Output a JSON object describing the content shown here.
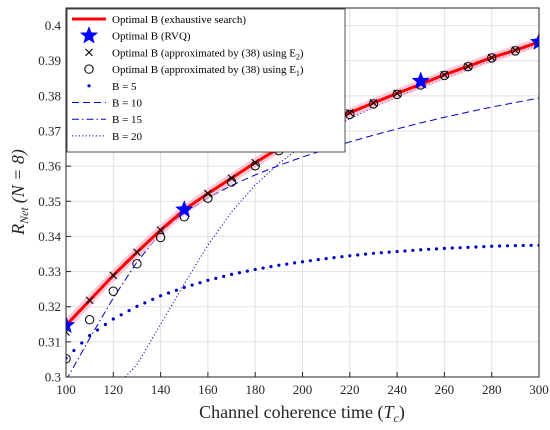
{
  "chart_data": {
    "type": "line",
    "xlabel": "Channel coherence time (",
    "xlabel_symbol": "T",
    "xlabel_sub": "c",
    "xlabel_close": ")",
    "ylabel_symbol": "R",
    "ylabel_sub": "Net",
    "ylabel_paren": "(N = 8)",
    "xlim": [
      100,
      300
    ],
    "ylim": [
      0.3,
      0.405
    ],
    "xticks": [
      100,
      120,
      140,
      160,
      180,
      200,
      220,
      240,
      260,
      280,
      300
    ],
    "yticks": [
      0.3,
      0.31,
      0.32,
      0.33,
      0.34,
      0.35,
      0.36,
      0.37,
      0.38,
      0.39,
      0.4
    ],
    "grid": true,
    "legend_position": "top-left",
    "series": [
      {
        "name": "Optimal B (exhaustive search)",
        "style": "solid-thick",
        "color": "#ff0000",
        "x": [
          100,
          110,
          120,
          130,
          140,
          150,
          160,
          170,
          180,
          190,
          200,
          210,
          220,
          230,
          240,
          250,
          260,
          270,
          280,
          290,
          300
        ],
        "y": [
          0.3147,
          0.3218,
          0.3289,
          0.3355,
          0.3418,
          0.3476,
          0.3522,
          0.3566,
          0.361,
          0.3651,
          0.369,
          0.3722,
          0.3752,
          0.378,
          0.3807,
          0.3833,
          0.386,
          0.3884,
          0.3909,
          0.393,
          0.3953
        ]
      },
      {
        "name": "Optimal B (RVQ)",
        "style": "star",
        "color": "#0000ff",
        "x": [
          100,
          150,
          200,
          250,
          300
        ],
        "y": [
          0.3147,
          0.3476,
          0.369,
          0.3842,
          0.3953
        ]
      },
      {
        "name": "Optimal B (approximated by (38) using E",
        "name_sub": "2",
        "name_close": ")",
        "style": "cross",
        "color": "#000000",
        "x": [
          100,
          110,
          120,
          130,
          140,
          150,
          160,
          170,
          180,
          190,
          200,
          210,
          220,
          230,
          240,
          250,
          260,
          270,
          280,
          290,
          300
        ],
        "y": [
          0.3128,
          0.3218,
          0.3289,
          0.3355,
          0.3418,
          0.3476,
          0.3522,
          0.3566,
          0.361,
          0.3651,
          0.369,
          0.3722,
          0.3752,
          0.378,
          0.3807,
          0.3833,
          0.386,
          0.3884,
          0.3909,
          0.393,
          0.3953
        ]
      },
      {
        "name": "Optimal B (approximated by (38) using E",
        "name_sub": "1",
        "name_close": ")",
        "style": "circle",
        "color": "#000000",
        "x": [
          100,
          110,
          120,
          130,
          140,
          150,
          160,
          170,
          180,
          190,
          200,
          210,
          220,
          230,
          240,
          250,
          260,
          270,
          280,
          290,
          300
        ],
        "y": [
          0.3052,
          0.3163,
          0.3244,
          0.3322,
          0.3397,
          0.3456,
          0.3509,
          0.3555,
          0.3601,
          0.3644,
          0.3684,
          0.3717,
          0.3747,
          0.3777,
          0.3804,
          0.3831,
          0.3858,
          0.3883,
          0.3908,
          0.3928,
          0.3952
        ]
      },
      {
        "name": "B = 5",
        "style": "dotted-big",
        "color": "#0000cc",
        "x": [
          100,
          110,
          120,
          130,
          140,
          150,
          160,
          170,
          180,
          190,
          200,
          210,
          220,
          230,
          240,
          250,
          260,
          270,
          280,
          290,
          300
        ],
        "y": [
          0.3054,
          0.3118,
          0.3165,
          0.3201,
          0.3231,
          0.3255,
          0.3275,
          0.3292,
          0.3306,
          0.3318,
          0.3328,
          0.3337,
          0.3345,
          0.3352,
          0.3357,
          0.3362,
          0.3366,
          0.3369,
          0.3372,
          0.3374,
          0.3375
        ]
      },
      {
        "name": "B = 10",
        "style": "dashed",
        "color": "#0000cc",
        "x": [
          100,
          110,
          120,
          130,
          140,
          150,
          160,
          170,
          180,
          190,
          200,
          210,
          220,
          230,
          240,
          250,
          260,
          270,
          280,
          290,
          300
        ],
        "y": [
          0.314,
          0.3216,
          0.3287,
          0.3353,
          0.3414,
          0.3466,
          0.351,
          0.3545,
          0.3575,
          0.3602,
          0.3626,
          0.3648,
          0.3669,
          0.3688,
          0.3706,
          0.3723,
          0.3739,
          0.3754,
          0.3768,
          0.3781,
          0.3794
        ]
      },
      {
        "name": "B = 15",
        "style": "dashdot",
        "color": "#0000cc",
        "x": [
          100,
          110,
          120,
          130,
          140,
          150,
          160,
          170,
          180,
          190,
          200,
          210,
          220,
          230,
          240,
          250,
          260,
          270,
          280,
          290,
          300
        ],
        "y": [
          0.299,
          0.311,
          0.3225,
          0.3327,
          0.341,
          0.3474,
          0.3522,
          0.3564,
          0.3606,
          0.3648,
          0.3688,
          0.3721,
          0.3752,
          0.378,
          0.3807,
          0.3833,
          0.386,
          0.3884,
          0.3909,
          0.393,
          0.3953
        ]
      },
      {
        "name": "B = 20",
        "style": "dotted",
        "color": "#0000cc",
        "x": [
          125,
          130,
          140,
          150,
          160,
          170,
          180,
          190,
          200,
          210,
          220,
          230,
          240,
          250,
          260,
          270,
          280,
          290,
          300
        ],
        "y": [
          0.3,
          0.3035,
          0.315,
          0.3265,
          0.3375,
          0.347,
          0.3546,
          0.3608,
          0.3658,
          0.37,
          0.3735,
          0.3767,
          0.3797,
          0.3825,
          0.385,
          0.3875,
          0.39,
          0.3923,
          0.3945
        ]
      }
    ]
  }
}
